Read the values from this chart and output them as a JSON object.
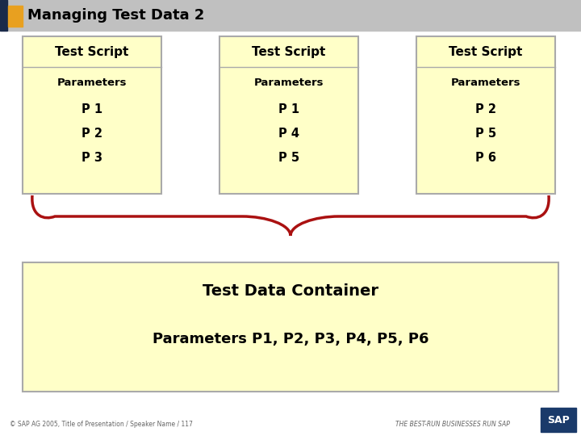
{
  "title": "Managing Test Data 2",
  "title_bg": "#c0c0c0",
  "title_accent_color": "#e8a020",
  "title_dark_color": "#1a2a4a",
  "background_color": "#ffffff",
  "box_fill": "#ffffc8",
  "box_edge": "#aaaaaa",
  "script_boxes": [
    {
      "title": "Test Script",
      "params_label": "Parameters",
      "params": [
        "P 1",
        "P 2",
        "P 3"
      ]
    },
    {
      "title": "Test Script",
      "params_label": "Parameters",
      "params": [
        "P 1",
        "P 4",
        "P 5"
      ]
    },
    {
      "title": "Test Script",
      "params_label": "Parameters",
      "params": [
        "P 2",
        "P 5",
        "P 6"
      ]
    }
  ],
  "container_title": "Test Data Container",
  "container_params": "Parameters P1, P2, P3, P4, P5, P6",
  "brace_color": "#aa1111",
  "footer_left": "© SAP AG 2005, Title of Presentation / Speaker Name / 117",
  "footer_right": "THE BEST-RUN BUSINESSES RUN SAP"
}
